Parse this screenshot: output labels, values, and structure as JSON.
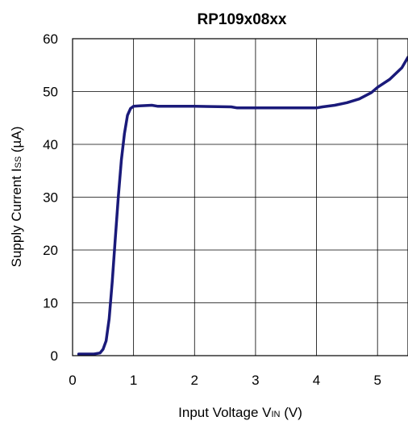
{
  "chart_data": {
    "type": "line",
    "title": "RP109x08xx",
    "xlabel": {
      "main": "Input Voltage V",
      "sub": "IN",
      "unit": " (V)"
    },
    "ylabel": {
      "main": "Supply Current I",
      "sub": "SS",
      "unit": " (µA)"
    },
    "xlim": [
      0,
      5.5
    ],
    "ylim": [
      0,
      60
    ],
    "x_ticks": [
      "0",
      "1",
      "2",
      "3",
      "4",
      "5"
    ],
    "y_ticks": [
      "0",
      "10",
      "20",
      "30",
      "40",
      "50",
      "60"
    ],
    "grid": true,
    "line_color": "#1a1a7a",
    "series": [
      {
        "x": [
          0.1,
          0.35,
          0.45,
          0.5,
          0.55,
          0.6,
          0.65,
          0.7,
          0.75,
          0.8,
          0.85,
          0.9,
          0.95,
          1.0,
          1.1,
          1.3,
          1.4,
          1.5,
          2.0,
          2.6,
          2.7,
          3.0,
          3.5,
          4.0,
          4.1,
          4.3,
          4.5,
          4.7,
          4.9,
          5.0,
          5.2,
          5.4,
          5.5
        ],
        "y": [
          0.3,
          0.3,
          0.5,
          1.2,
          2.8,
          7.0,
          14.0,
          22.0,
          30.0,
          37.0,
          42.0,
          45.5,
          46.8,
          47.2,
          47.3,
          47.4,
          47.2,
          47.2,
          47.2,
          47.1,
          46.9,
          46.9,
          46.9,
          46.9,
          47.1,
          47.4,
          47.9,
          48.6,
          49.8,
          50.8,
          52.3,
          54.5,
          56.5
        ]
      }
    ]
  }
}
